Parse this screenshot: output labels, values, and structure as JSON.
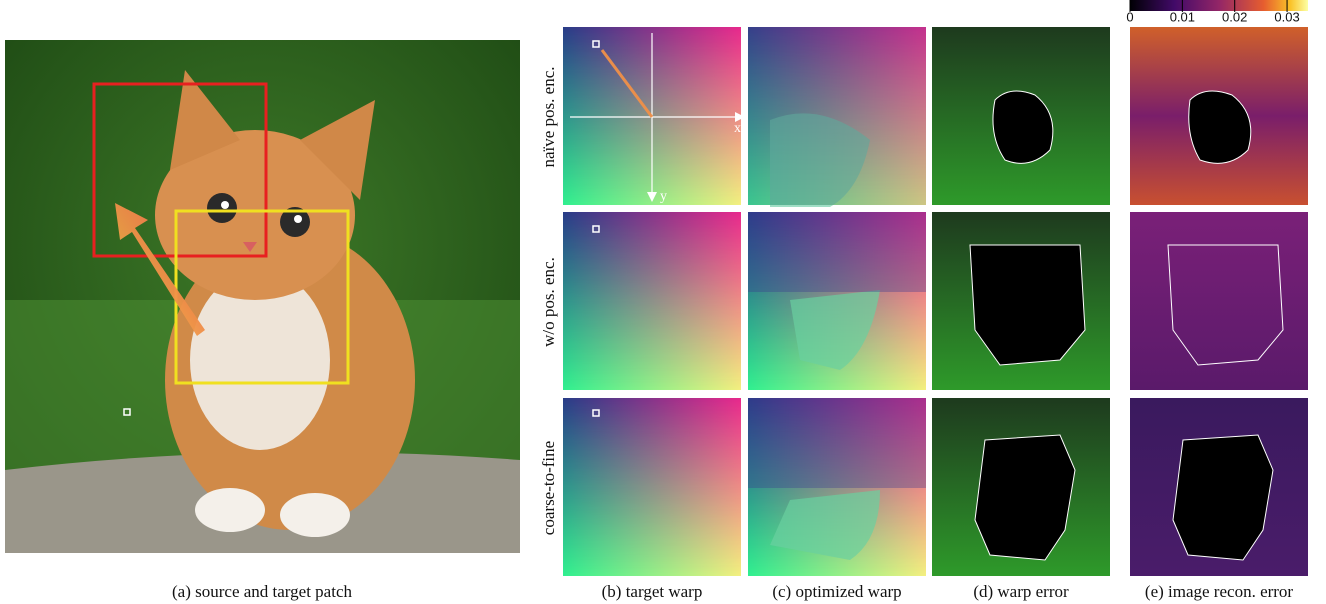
{
  "figure": {
    "captions": [
      "(a) source and target patch",
      "(b) target warp",
      "(c) optimized warp",
      "(d) warp error",
      "(e) image recon. error"
    ],
    "row_labels": [
      "naïve pos. enc.",
      "w/o pos. enc.",
      "coarse-to-fine"
    ],
    "axis_labels": {
      "x": "x",
      "y": "y"
    },
    "colorbar": {
      "lim": [
        0,
        0.034
      ],
      "ticks": [
        0,
        0.01,
        0.02,
        0.03
      ]
    }
  }
}
